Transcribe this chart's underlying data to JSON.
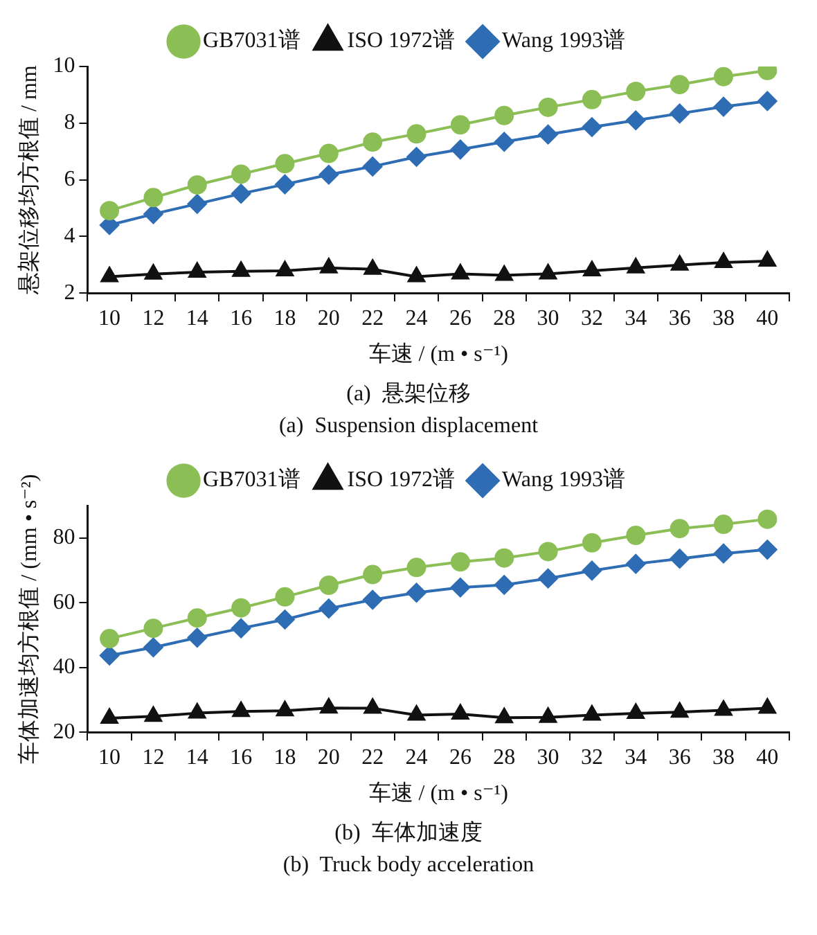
{
  "chart_data": [
    {
      "type": "line",
      "xlabel": "车速 / (m • s⁻¹)",
      "ylabel": "悬架位移均方根值 / mm",
      "categories": [
        "10",
        "12",
        "14",
        "16",
        "18",
        "20",
        "22",
        "24",
        "26",
        "28",
        "30",
        "32",
        "34",
        "36",
        "38",
        "40"
      ],
      "series": [
        {
          "name": "GB7031谱",
          "color": "#8bbf56",
          "marker": "circle",
          "values": [
            4.91,
            5.37,
            5.82,
            6.2,
            6.57,
            6.93,
            7.33,
            7.62,
            7.94,
            8.27,
            8.56,
            8.83,
            9.12,
            9.36,
            9.64,
            9.86
          ]
        },
        {
          "name": "ISO 1972谱",
          "color": "#111111",
          "marker": "triangle",
          "values": [
            2.58,
            2.67,
            2.74,
            2.77,
            2.79,
            2.89,
            2.84,
            2.58,
            2.68,
            2.63,
            2.68,
            2.79,
            2.89,
            2.99,
            3.08,
            3.13
          ]
        },
        {
          "name": "Wang 1993谱",
          "color": "#2e6db4",
          "marker": "diamond",
          "values": [
            4.4,
            4.79,
            5.15,
            5.51,
            5.84,
            6.18,
            6.47,
            6.81,
            7.07,
            7.34,
            7.6,
            7.86,
            8.1,
            8.34,
            8.58,
            8.78
          ]
        }
      ],
      "ylim": [
        2,
        10
      ],
      "yticks": [
        2,
        4,
        6,
        8,
        10
      ],
      "grid": false,
      "legend": "top",
      "annotations": [
        "(a)  悬架位移",
        "(a)  Suspension displacement"
      ]
    },
    {
      "type": "line",
      "xlabel": "车速 / (m • s⁻¹)",
      "ylabel": "车体加速均方根值 / (mm • s⁻²)",
      "categories": [
        "10",
        "12",
        "14",
        "16",
        "18",
        "20",
        "22",
        "24",
        "26",
        "28",
        "30",
        "32",
        "34",
        "36",
        "38",
        "40"
      ],
      "series": [
        {
          "name": "GB7031谱",
          "color": "#8bbf56",
          "marker": "circle",
          "values": [
            48.9,
            52.1,
            55.3,
            58.4,
            61.8,
            65.4,
            68.7,
            70.9,
            72.6,
            73.8,
            75.8,
            78.5,
            80.8,
            82.9,
            84.2,
            85.8
          ]
        },
        {
          "name": "ISO 1972谱",
          "color": "#111111",
          "marker": "triangle",
          "values": [
            24.3,
            24.9,
            25.9,
            26.4,
            26.6,
            27.5,
            27.4,
            25.3,
            25.6,
            24.5,
            24.6,
            25.3,
            25.8,
            26.2,
            26.8,
            27.4
          ]
        },
        {
          "name": "Wang 1993谱",
          "color": "#2e6db4",
          "marker": "diamond",
          "values": [
            43.7,
            46.2,
            49.2,
            52.1,
            54.8,
            58.2,
            60.9,
            63.1,
            64.7,
            65.5,
            67.5,
            69.9,
            72.0,
            73.6,
            75.2,
            76.4
          ]
        }
      ],
      "ylim": [
        20,
        90
      ],
      "yticks": [
        20,
        40,
        60,
        80
      ],
      "grid": false,
      "legend": "top",
      "annotations": [
        "(b)  车体加速度",
        "(b)  Truck body acceleration"
      ]
    }
  ]
}
